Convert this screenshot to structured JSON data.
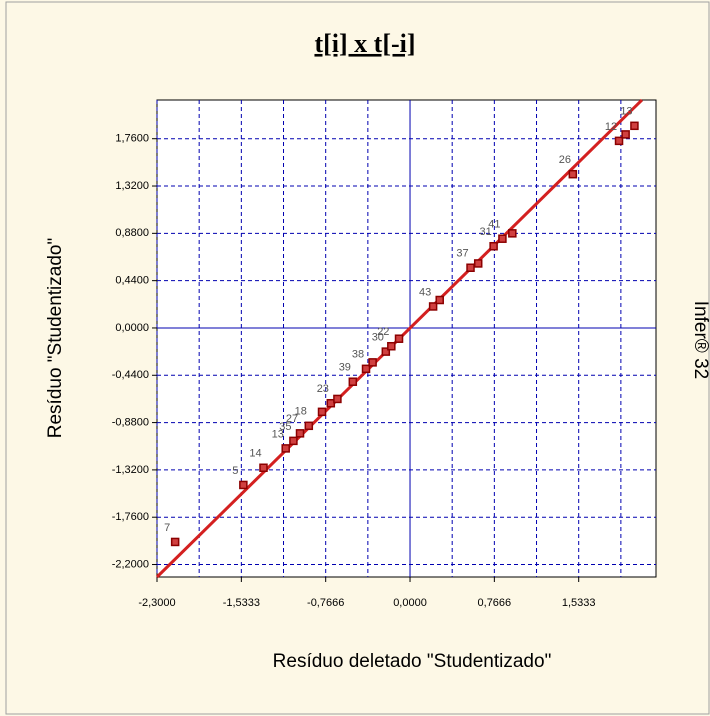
{
  "chart_data": {
    "type": "scatter",
    "title": "t[i] x t[-i]",
    "xlabel": "Resíduo deletado \"Studentizado\"",
    "ylabel": "Resíduo \"Studentizado\"",
    "side_text": "Infer® 32",
    "xlim": [
      -2.3,
      2.236
    ],
    "ylim": [
      -2.316,
      2.12
    ],
    "xticks": [
      {
        "value": -2.3,
        "label": "-2,3000"
      },
      {
        "value": -1.5333,
        "label": "-1,5333"
      },
      {
        "value": -0.7666,
        "label": "-0,7666"
      },
      {
        "value": 0,
        "label": "0,0000"
      },
      {
        "value": 0.7666,
        "label": "0,7666"
      },
      {
        "value": 1.5333,
        "label": "1,5333"
      }
    ],
    "xminorticks": [
      -1.9167,
      -1.15,
      -0.3833,
      0.3833,
      1.15,
      1.9167
    ],
    "yticks": [
      {
        "value": 1.76,
        "label": "1,7600"
      },
      {
        "value": 1.32,
        "label": "1,3200"
      },
      {
        "value": 0.88,
        "label": "0,8800"
      },
      {
        "value": 0.44,
        "label": "0,4400"
      },
      {
        "value": 0,
        "label": "0,0000"
      },
      {
        "value": -0.44,
        "label": "-0,4400"
      },
      {
        "value": -0.88,
        "label": "-0,8800"
      },
      {
        "value": -1.32,
        "label": "-1,3200"
      },
      {
        "value": -1.76,
        "label": "-1,7600"
      },
      {
        "value": -2.2,
        "label": "-2,2000"
      }
    ],
    "grid": true,
    "color": "#8b0000",
    "x": [
      -2.135,
      -1.515,
      -1.332,
      -1.13,
      -1.06,
      -1.0,
      -0.92,
      -0.8,
      -0.72,
      -0.66,
      -0.52,
      -0.4,
      -0.34,
      -0.22,
      -0.17,
      -0.1,
      0.21,
      0.27,
      0.55,
      0.62,
      0.76,
      0.84,
      0.93,
      1.48,
      1.9,
      1.96,
      2.04
    ],
    "y": [
      -1.99,
      -1.46,
      -1.3,
      -1.12,
      -1.05,
      -0.98,
      -0.91,
      -0.78,
      -0.7,
      -0.66,
      -0.5,
      -0.38,
      -0.32,
      -0.22,
      -0.17,
      -0.1,
      0.2,
      0.26,
      0.56,
      0.6,
      0.76,
      0.83,
      0.88,
      1.43,
      1.74,
      1.8,
      1.88
    ],
    "point_labels": [
      "7",
      "5",
      "14",
      "13",
      "35",
      "27",
      "18",
      null,
      "23",
      null,
      "39",
      "38",
      null,
      "30",
      "22",
      null,
      "43",
      null,
      "37",
      null,
      "31",
      "41",
      null,
      "26",
      "12",
      null,
      "13"
    ],
    "fit_line": {
      "color": "#d42020",
      "x": [
        -2.3,
        2.108
      ],
      "y": [
        -2.316,
        2.12
      ]
    }
  }
}
